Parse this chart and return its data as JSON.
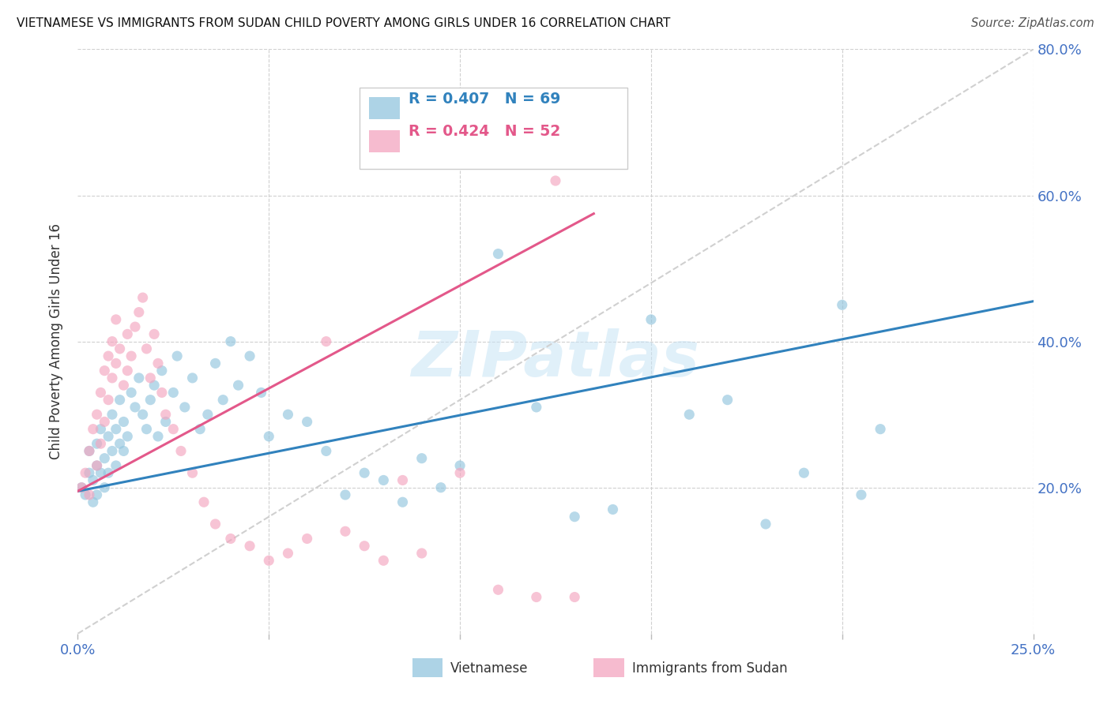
{
  "title": "VIETNAMESE VS IMMIGRANTS FROM SUDAN CHILD POVERTY AMONG GIRLS UNDER 16 CORRELATION CHART",
  "source": "Source: ZipAtlas.com",
  "ylabel": "Child Poverty Among Girls Under 16",
  "xlim": [
    0,
    0.25
  ],
  "ylim": [
    0,
    0.8
  ],
  "xtick_positions": [
    0.0,
    0.05,
    0.1,
    0.15,
    0.2,
    0.25
  ],
  "xtick_labels": [
    "0.0%",
    "",
    "",
    "",
    "",
    "25.0%"
  ],
  "ytick_positions": [
    0.0,
    0.2,
    0.4,
    0.6,
    0.8
  ],
  "ytick_labels": [
    "",
    "20.0%",
    "40.0%",
    "60.0%",
    "80.0%"
  ],
  "vietnamese_R": 0.407,
  "vietnamese_N": 69,
  "sudan_R": 0.424,
  "sudan_N": 52,
  "blue_color": "#92c5de",
  "pink_color": "#f4a5bf",
  "blue_line_color": "#3182bd",
  "pink_line_color": "#e3588a",
  "diagonal_color": "#d0d0d0",
  "watermark": "ZIPatlas",
  "viet_x": [
    0.001,
    0.002,
    0.003,
    0.003,
    0.004,
    0.004,
    0.005,
    0.005,
    0.005,
    0.006,
    0.006,
    0.007,
    0.007,
    0.008,
    0.008,
    0.009,
    0.009,
    0.01,
    0.01,
    0.011,
    0.011,
    0.012,
    0.012,
    0.013,
    0.014,
    0.015,
    0.016,
    0.017,
    0.018,
    0.019,
    0.02,
    0.021,
    0.022,
    0.023,
    0.025,
    0.026,
    0.028,
    0.03,
    0.032,
    0.034,
    0.036,
    0.038,
    0.04,
    0.042,
    0.045,
    0.048,
    0.05,
    0.055,
    0.06,
    0.065,
    0.07,
    0.075,
    0.08,
    0.085,
    0.09,
    0.095,
    0.1,
    0.11,
    0.12,
    0.13,
    0.14,
    0.15,
    0.16,
    0.17,
    0.18,
    0.19,
    0.2,
    0.205,
    0.21
  ],
  "viet_y": [
    0.2,
    0.19,
    0.22,
    0.25,
    0.18,
    0.21,
    0.23,
    0.19,
    0.26,
    0.22,
    0.28,
    0.2,
    0.24,
    0.27,
    0.22,
    0.25,
    0.3,
    0.23,
    0.28,
    0.26,
    0.32,
    0.25,
    0.29,
    0.27,
    0.33,
    0.31,
    0.35,
    0.3,
    0.28,
    0.32,
    0.34,
    0.27,
    0.36,
    0.29,
    0.33,
    0.38,
    0.31,
    0.35,
    0.28,
    0.3,
    0.37,
    0.32,
    0.4,
    0.34,
    0.38,
    0.33,
    0.27,
    0.3,
    0.29,
    0.25,
    0.19,
    0.22,
    0.21,
    0.18,
    0.24,
    0.2,
    0.23,
    0.52,
    0.31,
    0.16,
    0.17,
    0.43,
    0.3,
    0.32,
    0.15,
    0.22,
    0.45,
    0.19,
    0.28
  ],
  "sudan_x": [
    0.001,
    0.002,
    0.003,
    0.003,
    0.004,
    0.005,
    0.005,
    0.006,
    0.006,
    0.007,
    0.007,
    0.008,
    0.008,
    0.009,
    0.009,
    0.01,
    0.01,
    0.011,
    0.012,
    0.013,
    0.013,
    0.014,
    0.015,
    0.016,
    0.017,
    0.018,
    0.019,
    0.02,
    0.021,
    0.022,
    0.023,
    0.025,
    0.027,
    0.03,
    0.033,
    0.036,
    0.04,
    0.045,
    0.05,
    0.055,
    0.06,
    0.065,
    0.07,
    0.075,
    0.08,
    0.085,
    0.09,
    0.1,
    0.11,
    0.12,
    0.125,
    0.13
  ],
  "sudan_y": [
    0.2,
    0.22,
    0.19,
    0.25,
    0.28,
    0.23,
    0.3,
    0.26,
    0.33,
    0.29,
    0.36,
    0.32,
    0.38,
    0.35,
    0.4,
    0.37,
    0.43,
    0.39,
    0.34,
    0.41,
    0.36,
    0.38,
    0.42,
    0.44,
    0.46,
    0.39,
    0.35,
    0.41,
    0.37,
    0.33,
    0.3,
    0.28,
    0.25,
    0.22,
    0.18,
    0.15,
    0.13,
    0.12,
    0.1,
    0.11,
    0.13,
    0.4,
    0.14,
    0.12,
    0.1,
    0.21,
    0.11,
    0.22,
    0.06,
    0.05,
    0.62,
    0.05
  ]
}
